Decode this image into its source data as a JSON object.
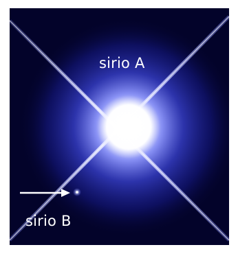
{
  "labels": {
    "star_a": "sirio A",
    "star_b": "sirio B"
  },
  "colors": {
    "background": "#03032a",
    "glow": "#6f7cff",
    "core": "#ffffff",
    "arrow": "#ffffff"
  },
  "icons": {
    "pointer": "arrow-right-icon"
  }
}
